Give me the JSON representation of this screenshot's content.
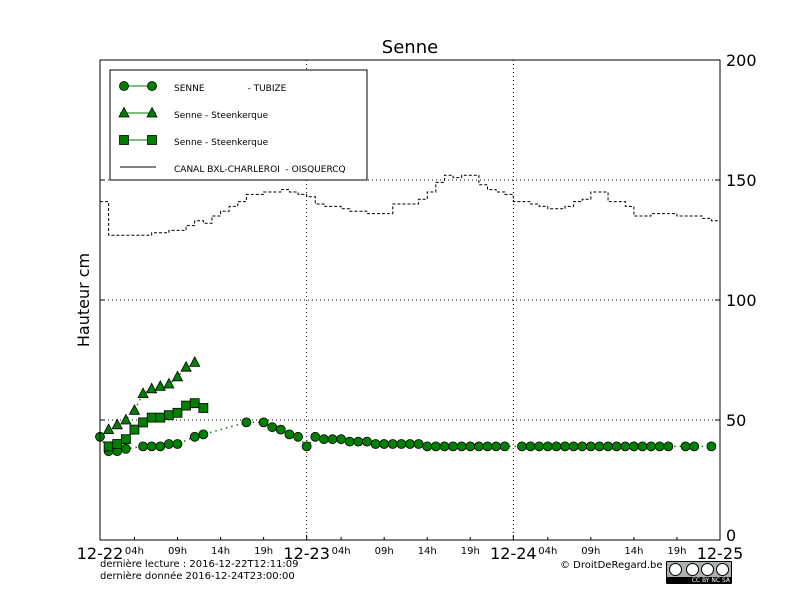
{
  "chart_data": {
    "type": "line",
    "title": "Senne",
    "ylabel": "Hauteur cm",
    "xlabel": "",
    "ylim": [
      0,
      200
    ],
    "xlim": [
      "2016-12-22T00:00",
      "2016-12-25T00:00"
    ],
    "yticks": [
      "0",
      "50",
      "100",
      "150",
      "200"
    ],
    "xticks_major": [
      "12-22",
      "12-23",
      "12-24",
      "12-25"
    ],
    "xticks_minor": [
      "04h",
      "09h",
      "14h",
      "19h"
    ],
    "grid": true,
    "legend_position": "top-left",
    "series": [
      {
        "name": "SENNE               - TUBIZE",
        "marker": "circle",
        "color": "#007f00",
        "x_hours": [
          0,
          1,
          2,
          3,
          5,
          6,
          7,
          8,
          9,
          11,
          12,
          17,
          19,
          20,
          21,
          22,
          23,
          24,
          25,
          26,
          27,
          28,
          29,
          30,
          31,
          32,
          33,
          34,
          35,
          36,
          37,
          38,
          39,
          40,
          41,
          42,
          43,
          44,
          45,
          46,
          47,
          49,
          50,
          51,
          52,
          53,
          54,
          55,
          56,
          57,
          58,
          59,
          60,
          61,
          62,
          63,
          64,
          65,
          66,
          68,
          69,
          71
        ],
        "values": [
          43,
          37,
          37,
          38,
          39,
          39,
          39,
          40,
          40,
          43,
          44,
          49,
          49,
          47,
          46,
          44,
          43,
          39,
          43,
          42,
          42,
          42,
          41,
          41,
          41,
          40,
          40,
          40,
          40,
          40,
          40,
          39,
          39,
          39,
          39,
          39,
          39,
          39,
          39,
          39,
          39,
          39,
          39,
          39,
          39,
          39,
          39,
          39,
          39,
          39,
          39,
          39,
          39,
          39,
          39,
          39,
          39,
          39,
          39,
          39,
          39,
          39
        ]
      },
      {
        "name": "Senne - Steenkerque",
        "marker": "triangle",
        "color": "#007f00",
        "x_hours": [
          1,
          2,
          3,
          4,
          5,
          6,
          7,
          8,
          9,
          10,
          11
        ],
        "values": [
          46,
          48,
          50,
          54,
          61,
          63,
          64,
          65,
          68,
          72,
          74
        ]
      },
      {
        "name": "Senne - Steenkerque",
        "marker": "square",
        "color": "#007f00",
        "x_hours": [
          1,
          2,
          3,
          4,
          5,
          6,
          7,
          8,
          9,
          10,
          11,
          12
        ],
        "values": [
          39,
          40,
          42,
          46,
          49,
          51,
          51,
          52,
          53,
          56,
          57,
          55
        ]
      },
      {
        "name": "CANAL BXL-CHARLEROI  - OISQUERCQ",
        "marker": "none",
        "color": "#000000",
        "x_hours": [
          0,
          1,
          2,
          3,
          4,
          5,
          6,
          7,
          8,
          9,
          10,
          11,
          12,
          13,
          14,
          15,
          16,
          17,
          18,
          19,
          20,
          21,
          22,
          23,
          24,
          25,
          26,
          27,
          28,
          29,
          30,
          31,
          32,
          33,
          34,
          35,
          36,
          37,
          38,
          39,
          40,
          41,
          42,
          43,
          44,
          45,
          46,
          47,
          48,
          49,
          50,
          51,
          52,
          53,
          54,
          55,
          56,
          57,
          58,
          59,
          60,
          61,
          62,
          63,
          64,
          65,
          66,
          67,
          68,
          69,
          70,
          71,
          72
        ],
        "values": [
          141,
          127,
          127,
          127,
          127,
          127,
          128,
          128,
          129,
          129,
          131,
          133,
          132,
          135,
          137,
          139,
          141,
          144,
          144,
          145,
          145,
          146,
          145,
          144,
          143,
          140,
          139,
          139,
          138,
          137,
          137,
          136,
          136,
          136,
          140,
          140,
          140,
          142,
          145,
          149,
          152,
          151,
          152,
          152,
          148,
          146,
          145,
          144,
          141,
          141,
          140,
          139,
          138,
          138,
          139,
          141,
          142,
          145,
          145,
          141,
          141,
          139,
          135,
          135,
          136,
          136,
          136,
          135,
          135,
          135,
          134,
          133,
          133
        ]
      }
    ]
  },
  "footer": {
    "last_read": "dernière lecture : 2016-12-22T12:11:09",
    "last_data": "dernière donnée  2016-12-24T23:00:00",
    "copyright": "© DroitDeRegard.be",
    "license": "CC BY NC SA"
  }
}
